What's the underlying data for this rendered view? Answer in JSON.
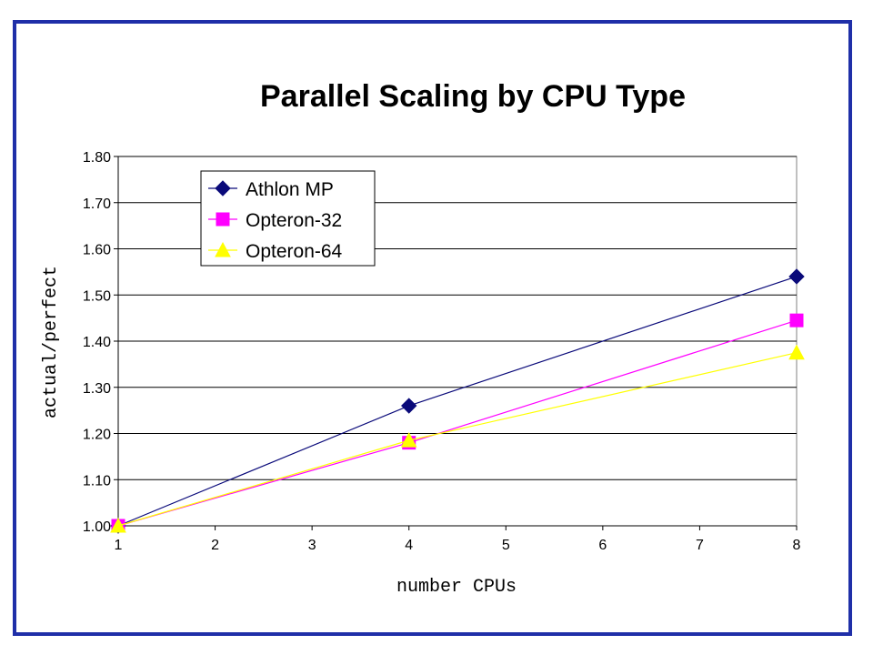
{
  "chart_data": {
    "type": "line",
    "title": "Parallel Scaling by CPU Type",
    "xlabel": "number CPUs",
    "ylabel": "actual/perfect",
    "x_ticks": [
      "1",
      "2",
      "3",
      "4",
      "5",
      "6",
      "7",
      "8"
    ],
    "xlim": [
      1,
      8
    ],
    "y_ticks": [
      "1.00",
      "1.10",
      "1.20",
      "1.30",
      "1.40",
      "1.50",
      "1.60",
      "1.70",
      "1.80"
    ],
    "ylim": [
      1.0,
      1.8
    ],
    "grid": "horizontal",
    "legend_position": "top-left",
    "series": [
      {
        "name": "Athlon MP",
        "x": [
          1,
          4,
          8
        ],
        "y": [
          1.0,
          1.26,
          1.54
        ],
        "color": "#0a0a7a",
        "marker": "diamond"
      },
      {
        "name": "Opteron-32",
        "x": [
          1,
          4,
          8
        ],
        "y": [
          1.0,
          1.18,
          1.445
        ],
        "color": "#ff00ff",
        "marker": "square"
      },
      {
        "name": "Opteron-64",
        "x": [
          1,
          4,
          8
        ],
        "y": [
          1.0,
          1.185,
          1.375
        ],
        "color": "#ffff00",
        "marker": "triangle"
      }
    ]
  }
}
